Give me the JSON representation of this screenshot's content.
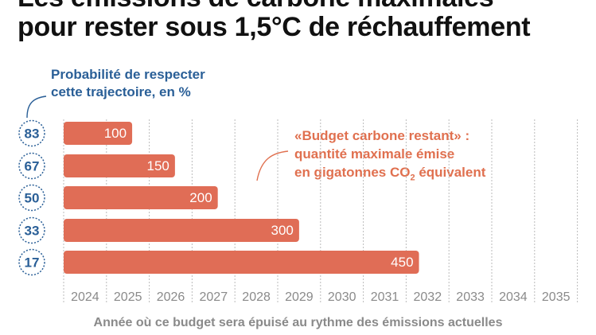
{
  "title": {
    "line1": "Les émissions de carbone maximales",
    "line2": "pour rester sous 1,5°C de réchauffement"
  },
  "probability_note": {
    "line1": "Probabilité de respecter",
    "line2": "cette trajectoire, en %"
  },
  "budget_note": {
    "line1": "«Budget carbone restant» :",
    "line2": "quantité maximale émise",
    "line3_prefix": "en gigatonnes CO",
    "line3_sub": "2",
    "line3_suffix": " équivalent"
  },
  "colors": {
    "bar": "#e06d56",
    "blue": "#2a5f97",
    "orange": "#e0704f",
    "axis": "#8a8a8a",
    "grid": "#bbbbbb"
  },
  "chart_data": {
    "type": "bar",
    "orientation": "horizontal",
    "x": [
      2024,
      2025,
      2026,
      2027,
      2028,
      2029,
      2030,
      2031,
      2032,
      2033,
      2034,
      2035
    ],
    "xlabel": "Année où ce budget sera épuisé au rythme des émissions actuelles",
    "categories": [
      "83",
      "67",
      "50",
      "33",
      "17"
    ],
    "series": [
      {
        "values": [
          2025.6,
          2026.6,
          2027.6,
          2029.5,
          2032.3
        ],
        "labels": [
          "100",
          "150",
          "200",
          "300",
          "450"
        ]
      }
    ]
  }
}
